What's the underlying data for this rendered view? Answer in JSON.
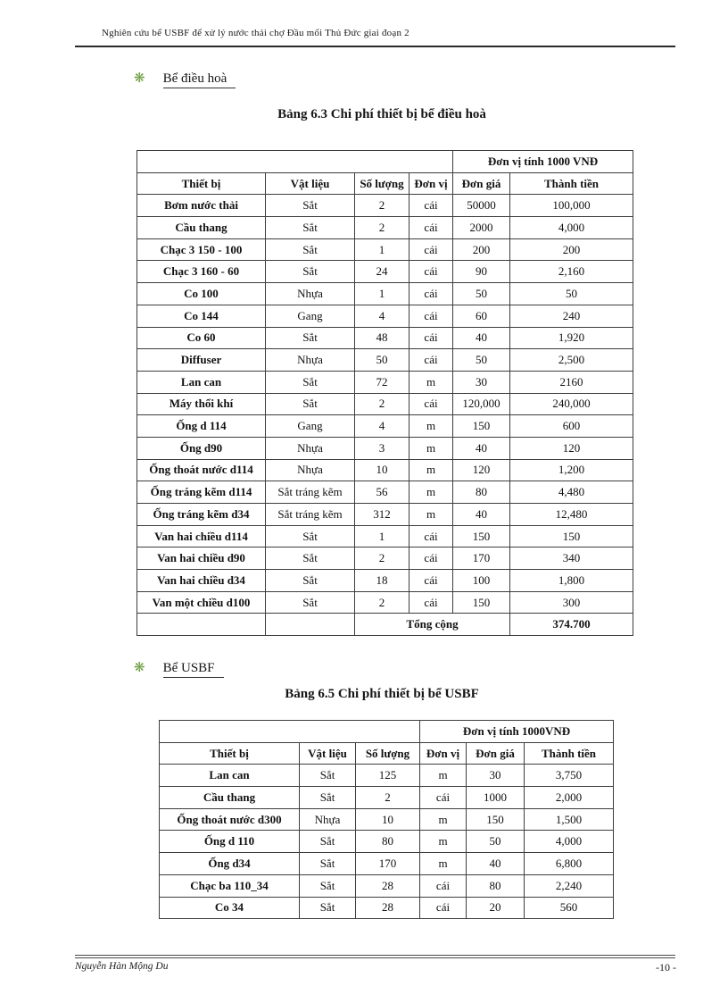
{
  "header": {
    "text": "Nghiên cứu bể USBF để xử lý nước thải chợ Đầu mối Thủ Đức giai đoạn 2"
  },
  "bullet": {
    "glyph": "❋",
    "color": "#6d9b3d",
    "name": "flower-bullet-icon"
  },
  "sections": [
    {
      "heading": "Bể điều hoà"
    },
    {
      "heading": "Bể USBF"
    }
  ],
  "table1": {
    "title": "Bảng 6.3 Chi phí thiết bị bể điều hoà",
    "unit_note": "Đơn vị tính 1000 VNĐ",
    "columns": [
      "Thiết bị",
      "Vật liệu",
      "Số lượng",
      "Đơn vị",
      "Đơn giá",
      "Thành tiền"
    ],
    "rows": [
      [
        "Bơm nước thải",
        "Sắt",
        "2",
        "cái",
        "50000",
        "100,000"
      ],
      [
        "Cầu thang",
        "Sắt",
        "2",
        "cái",
        "2000",
        "4,000"
      ],
      [
        "Chạc 3 150 - 100",
        "Sắt",
        "1",
        "cái",
        "200",
        "200"
      ],
      [
        "Chạc 3 160 - 60",
        "Sắt",
        "24",
        "cái",
        "90",
        "2,160"
      ],
      [
        "Co 100",
        "Nhựa",
        "1",
        "cái",
        "50",
        "50"
      ],
      [
        "Co 144",
        "Gang",
        "4",
        "cái",
        "60",
        "240"
      ],
      [
        "Co 60",
        "Sắt",
        "48",
        "cái",
        "40",
        "1,920"
      ],
      [
        "Diffuser",
        "Nhựa",
        "50",
        "cái",
        "50",
        "2,500"
      ],
      [
        "Lan can",
        "Sắt",
        "72",
        "m",
        "30",
        "2160"
      ],
      [
        "Máy thổi khí",
        "Sắt",
        "2",
        "cái",
        "120,000",
        "240,000"
      ],
      [
        "Ống d 114",
        "Gang",
        "4",
        "m",
        "150",
        "600"
      ],
      [
        "Ống d90",
        "Nhựa",
        "3",
        "m",
        "40",
        "120"
      ],
      [
        "Ống thoát nước d114",
        "Nhựa",
        "10",
        "m",
        "120",
        "1,200"
      ],
      [
        "Ống tráng kẽm d114",
        "Sắt tráng kẽm",
        "56",
        "m",
        "80",
        "4,480"
      ],
      [
        "Ống tráng kẽm d34",
        "Sắt tráng kẽm",
        "312",
        "m",
        "40",
        "12,480"
      ],
      [
        "Van hai chiều d114",
        "Sắt",
        "1",
        "cái",
        "150",
        "150"
      ],
      [
        "Van hai chiều d90",
        "Sắt",
        "2",
        "cái",
        "170",
        "340"
      ],
      [
        "Van hai chiều d34",
        "Sắt",
        "18",
        "cái",
        "100",
        "1,800"
      ],
      [
        "Van một chiều d100",
        "Sắt",
        "2",
        "cái",
        "150",
        "300"
      ]
    ],
    "total_label": "Tổng cộng",
    "total_value": "374.700"
  },
  "table2": {
    "title": "Bảng 6.5 Chi phí thiết bị bể USBF",
    "unit_note": "Đơn vị tính 1000VNĐ",
    "columns": [
      "Thiết bị",
      "Vật liệu",
      "Số lượng",
      "Đơn vị",
      "Đơn giá",
      "Thành tiền"
    ],
    "rows": [
      [
        "Lan can",
        "Sắt",
        "125",
        "m",
        "30",
        "3,750"
      ],
      [
        "Cầu thang",
        "Sắt",
        "2",
        "cái",
        "1000",
        "2,000"
      ],
      [
        "Ống thoát nước d300",
        "Nhựa",
        "10",
        "m",
        "150",
        "1,500"
      ],
      [
        "Ống d 110",
        "Sắt",
        "80",
        "m",
        "50",
        "4,000"
      ],
      [
        "Ống d34",
        "Sắt",
        "170",
        "m",
        "40",
        "6,800"
      ],
      [
        "Chạc ba 110_34",
        "Sắt",
        "28",
        "cái",
        "80",
        "2,240"
      ],
      [
        "Co 34",
        "Sắt",
        "28",
        "cái",
        "20",
        "560"
      ]
    ]
  },
  "footer": {
    "author": "Nguyễn Hàn Mộng Du",
    "page_number": "-10 -"
  }
}
